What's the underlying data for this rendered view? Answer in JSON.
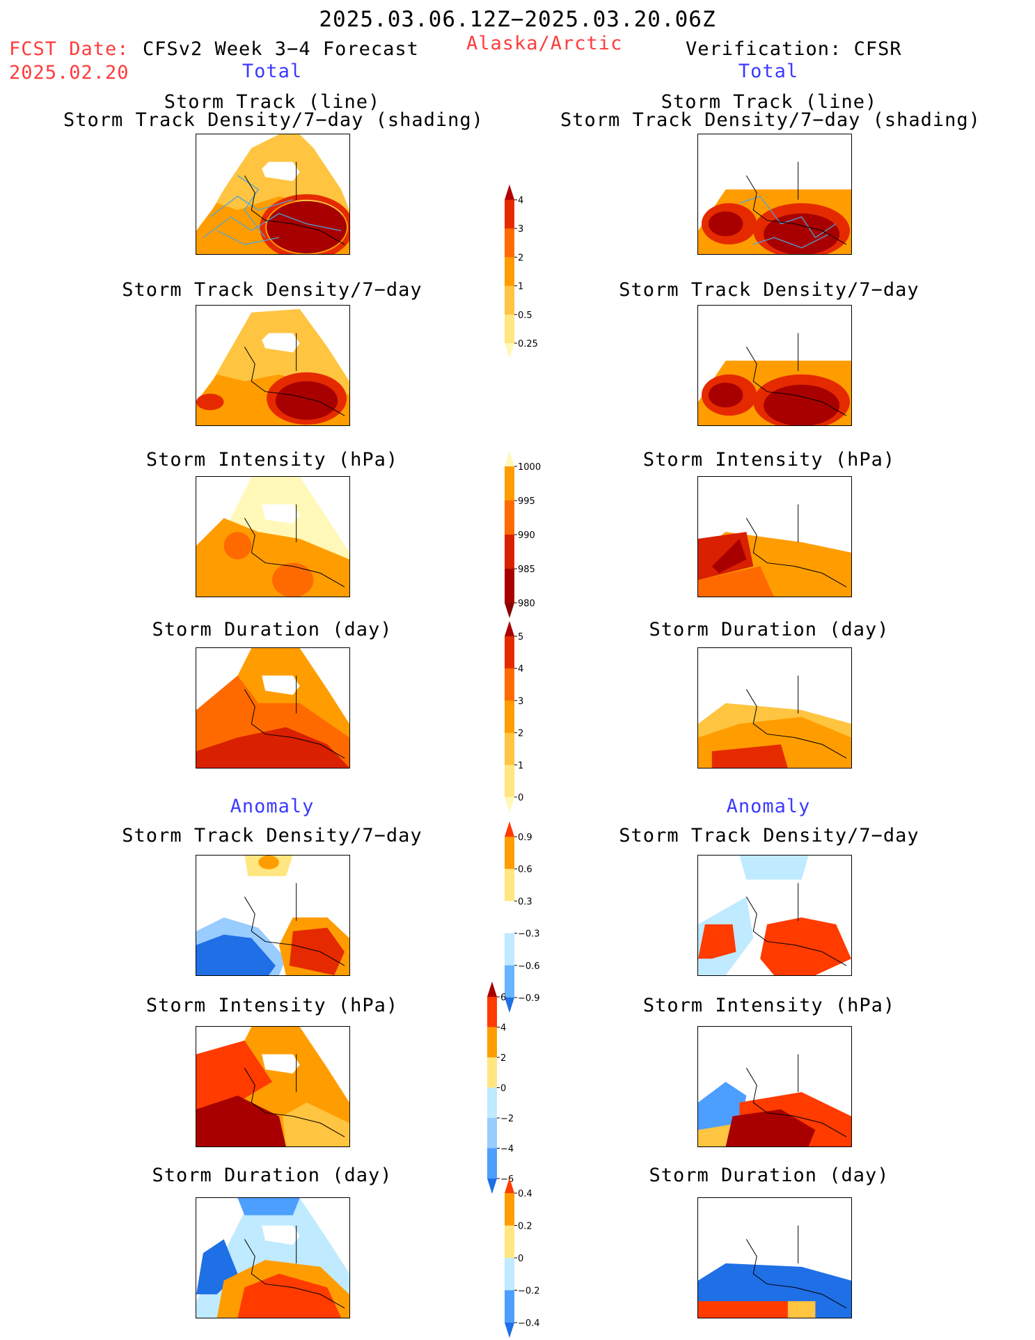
{
  "header": {
    "period": "2025.03.06.12Z−2025.03.20.06Z",
    "fcst_label": "FCST Date:",
    "fcst_date": "2025.02.20",
    "forecast_title": "CFSv2 Week 3−4 Forecast",
    "region": "Alaska/Arctic",
    "verification": "Verification: CFSR"
  },
  "sections": {
    "total": "Total",
    "anomaly": "Anomaly"
  },
  "panel_titles": {
    "track_line": "Storm Track (line)",
    "track_shading": "Storm Track Density/7−day (shading)",
    "density": "Storm Track Density/7−day",
    "intensity": "Storm Intensity (hPa)",
    "duration": "Storm Duration (day)"
  },
  "colorbars": [
    {
      "id": "density_total",
      "labels": [
        "4",
        "3",
        "2",
        "1",
        "0.5",
        "0.25"
      ],
      "colors": [
        "#b30000",
        "#e62a00",
        "#ff6a00",
        "#ff9d00",
        "#ffc440",
        "#ffe680",
        "#fff8b8"
      ]
    },
    {
      "id": "intensity_total",
      "labels": [
        "1000",
        "995",
        "990",
        "985",
        "980"
      ],
      "colors": [
        "#fff8b8",
        "#ff9d00",
        "#ff6a00",
        "#d92000",
        "#a80000",
        "#8a0000"
      ]
    },
    {
      "id": "duration_total",
      "labels": [
        "5",
        "4",
        "3",
        "2",
        "1",
        "0"
      ],
      "colors": [
        "#a80000",
        "#e62a00",
        "#ff6a00",
        "#ff9d00",
        "#ffc440",
        "#ffe680",
        "#fff8b8"
      ]
    },
    {
      "id": "density_anom",
      "labels": [
        "0.9",
        "0.6",
        "0.3",
        "−0.3",
        "−0.6",
        "−0.9"
      ],
      "colors": [
        "#ff3b00",
        "#ff9d00",
        "#ffe680",
        "#ffffff",
        "#bfeaff",
        "#66b3ff",
        "#1f6fe6"
      ]
    },
    {
      "id": "intensity_anom",
      "labels": [
        "6",
        "4",
        "2",
        "0",
        "−2",
        "−4",
        "−6"
      ],
      "colors": [
        "#a80000",
        "#ff3b00",
        "#ff9d00",
        "#ffe680",
        "#bfeaff",
        "#99ccff",
        "#4d9fff",
        "#1f6fe6"
      ]
    },
    {
      "id": "duration_anom",
      "labels": [
        "0.4",
        "0.2",
        "0",
        "−0.2",
        "−0.4"
      ],
      "colors": [
        "#ff3b00",
        "#ff9d00",
        "#ffe680",
        "#bfeaff",
        "#4d9fff",
        "#1f6fe6"
      ]
    }
  ],
  "colors": {
    "red_text": "#ff3b3b",
    "blue_text": "#3a3aff"
  }
}
